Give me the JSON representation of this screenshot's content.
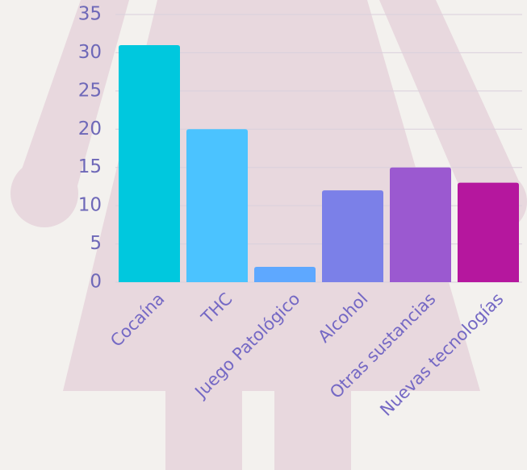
{
  "chart_data": {
    "type": "bar",
    "categories": [
      "Cocaína",
      "THC",
      "Juego Patológico",
      "Alcohol",
      "Otras sustancias",
      "Nuevas tecnologías"
    ],
    "values": [
      31,
      20,
      2,
      12,
      15,
      13
    ],
    "colors": [
      "#00c8de",
      "#4bc3ff",
      "#5ea8ff",
      "#7b80e8",
      "#9b59d0",
      "#b5179e"
    ],
    "ylim": [
      0,
      35
    ],
    "yticks": [
      0,
      5,
      10,
      15,
      20,
      25,
      30,
      35
    ],
    "grid": true
  }
}
